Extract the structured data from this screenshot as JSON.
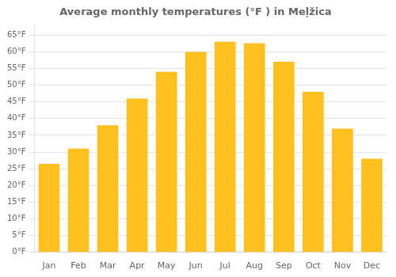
{
  "chart_data": {
    "type": "bar",
    "title": "Average monthly temperatures (°F ) in Meļžica",
    "categories": [
      "Jan",
      "Feb",
      "Mar",
      "Apr",
      "May",
      "Jun",
      "Jul",
      "Aug",
      "Sep",
      "Oct",
      "Nov",
      "Dec"
    ],
    "values": [
      26.5,
      31.0,
      38.0,
      46.0,
      54.0,
      60.0,
      63.0,
      62.5,
      57.0,
      48.0,
      37.0,
      28.0
    ],
    "color": "#FFC020",
    "ylim": [
      0,
      68
    ],
    "yticks": [
      {
        "value": 0,
        "label": "0°F"
      },
      {
        "value": 5,
        "label": "5°F"
      },
      {
        "value": 10,
        "label": "10°F"
      },
      {
        "value": 15,
        "label": "15°F"
      },
      {
        "value": 20,
        "label": "20°F"
      },
      {
        "value": 25,
        "label": "25°F"
      },
      {
        "value": 30,
        "label": "30°F"
      },
      {
        "value": 35,
        "label": "35°F"
      },
      {
        "value": 40,
        "label": "40°F"
      },
      {
        "value": 45,
        "label": "45°F"
      },
      {
        "value": 50,
        "label": "50°F"
      },
      {
        "value": 55,
        "label": "55°F"
      },
      {
        "value": 60,
        "label": "60°F"
      },
      {
        "value": 65,
        "label": "65°F"
      }
    ],
    "grid": true
  }
}
